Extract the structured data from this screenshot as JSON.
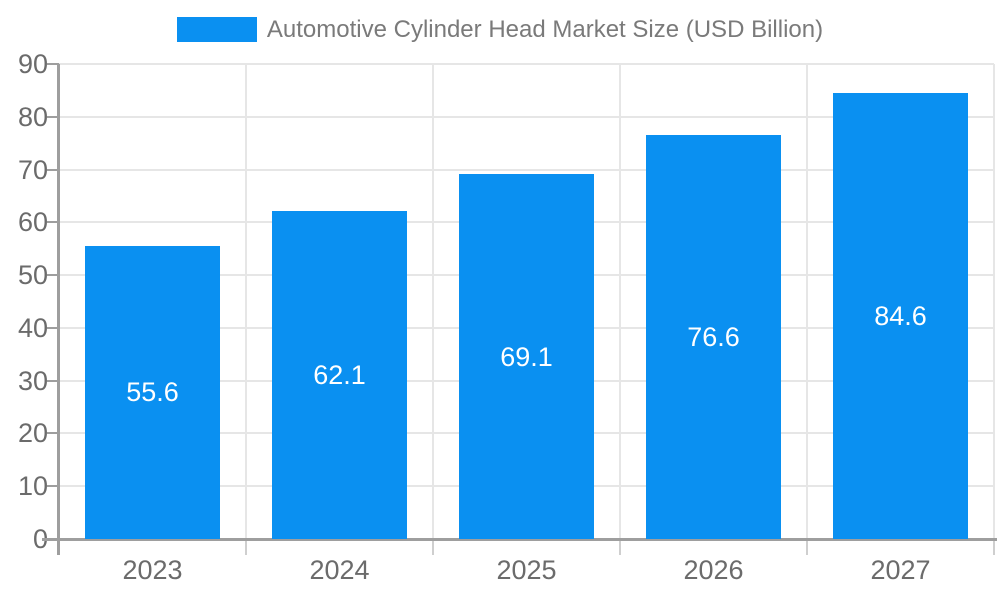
{
  "chart_data": {
    "type": "bar",
    "title": "Automotive Cylinder Head Market Size (USD Billion)",
    "legend": [
      {
        "label": "Automotive Cylinder Head Market Size (USD Billion)",
        "color": "#0a90f1"
      }
    ],
    "legend_position": "top-center",
    "categories": [
      "2023",
      "2024",
      "2025",
      "2026",
      "2027"
    ],
    "series": [
      {
        "name": "Automotive Cylinder Head Market Size (USD Billion)",
        "values": [
          55.6,
          62.1,
          69.1,
          76.6,
          84.6
        ]
      }
    ],
    "value_labels": [
      "55.6",
      "62.1",
      "69.1",
      "76.6",
      "84.6"
    ],
    "xlabel": "",
    "ylabel": "",
    "ylim": [
      0,
      90
    ],
    "yticks": [
      0,
      10,
      20,
      30,
      40,
      50,
      60,
      70,
      80,
      90
    ],
    "ytick_labels": [
      "0",
      "10",
      "20",
      "30",
      "40",
      "50",
      "60",
      "70",
      "80",
      "90"
    ],
    "grid": true
  },
  "colors": {
    "bar": "#0a90f1",
    "grid": "#e6e6e6",
    "axis": "#9e9e9e",
    "x_tick": "#cfcfcf",
    "tick_label": "#6b6b6b",
    "legend_text": "#7a7a7a",
    "value_label": "#ffffff",
    "background": "#ffffff"
  }
}
